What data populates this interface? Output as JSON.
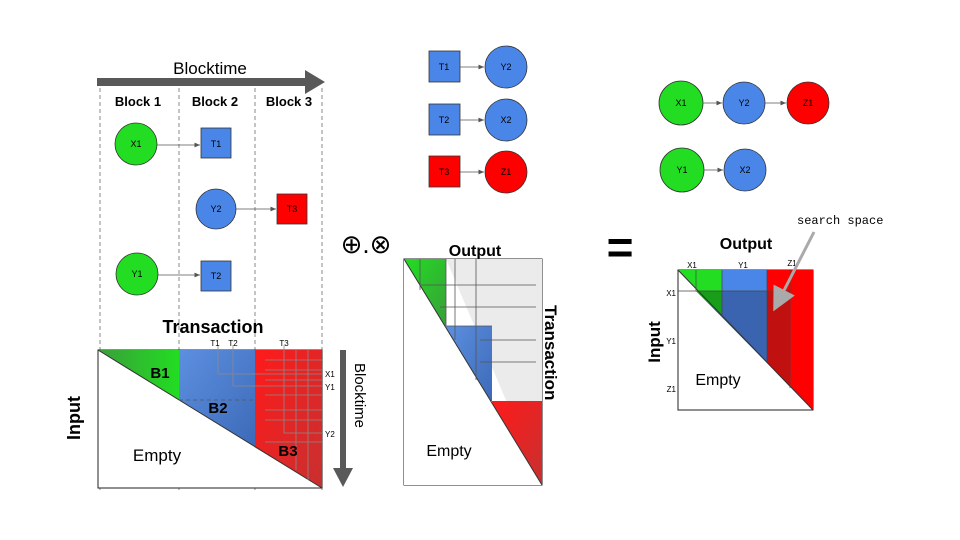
{
  "timeline": {
    "label": "Blocktime",
    "blocks": [
      "Block 1",
      "Block 2",
      "Block 3"
    ]
  },
  "nodes": {
    "x1": "X1",
    "y1": "Y1",
    "y2": "Y2",
    "x2": "X2",
    "z1": "Z1",
    "t1": "T1",
    "t2": "T2",
    "t3": "T3"
  },
  "left_matrix": {
    "title": "Transaction",
    "side_label": "Input",
    "time_label": "Blocktime",
    "col_ticks": [
      "T1",
      "T2",
      "T3"
    ],
    "row_ticks": [
      "X1",
      "Y1",
      "Y2"
    ],
    "region_labels": [
      "B1",
      "B2",
      "B3"
    ],
    "empty_label": "Empty"
  },
  "operators": "⊕.⊗",
  "middle_matrix": {
    "title": "Output",
    "side_label": "Transaction",
    "empty_label": "Empty"
  },
  "equals": "=",
  "right_matrix": {
    "title": "Output",
    "side_label": "Input",
    "col_ticks": [
      "X1",
      "Y1",
      "Z1"
    ],
    "row_ticks": [
      "X1",
      "Y1",
      "Z1"
    ],
    "empty_label": "Empty",
    "annotation": "search space"
  },
  "colors": {
    "green": "#22dd22",
    "blue": "#4a86e8",
    "red": "#ff0000",
    "gray": "#ededed",
    "arrow": "#555555"
  }
}
